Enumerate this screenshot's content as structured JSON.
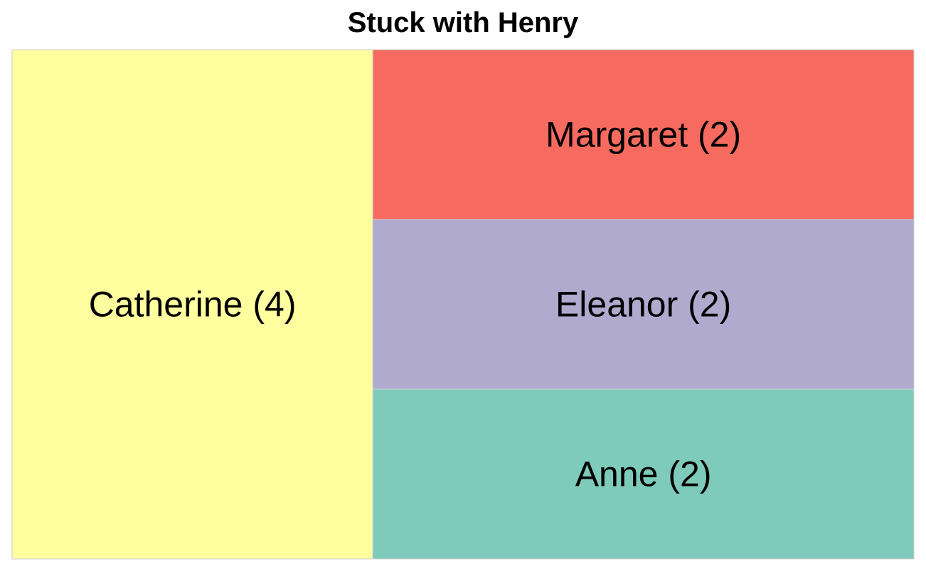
{
  "chart_data": {
    "type": "treemap",
    "title": "Stuck with Henry",
    "items": [
      {
        "name": "Catherine",
        "value": 4,
        "label": "Catherine (4)",
        "color": "#FFFF9F"
      },
      {
        "name": "Margaret",
        "value": 2,
        "label": "Margaret (2)",
        "color": "#F76A5F"
      },
      {
        "name": "Eleanor",
        "value": 2,
        "label": "Eleanor (2)",
        "color": "#B1AACF"
      },
      {
        "name": "Anne",
        "value": 2,
        "label": "Anne (2)",
        "color": "#7ECBBB"
      }
    ],
    "border_color": "#CFCFCF"
  }
}
